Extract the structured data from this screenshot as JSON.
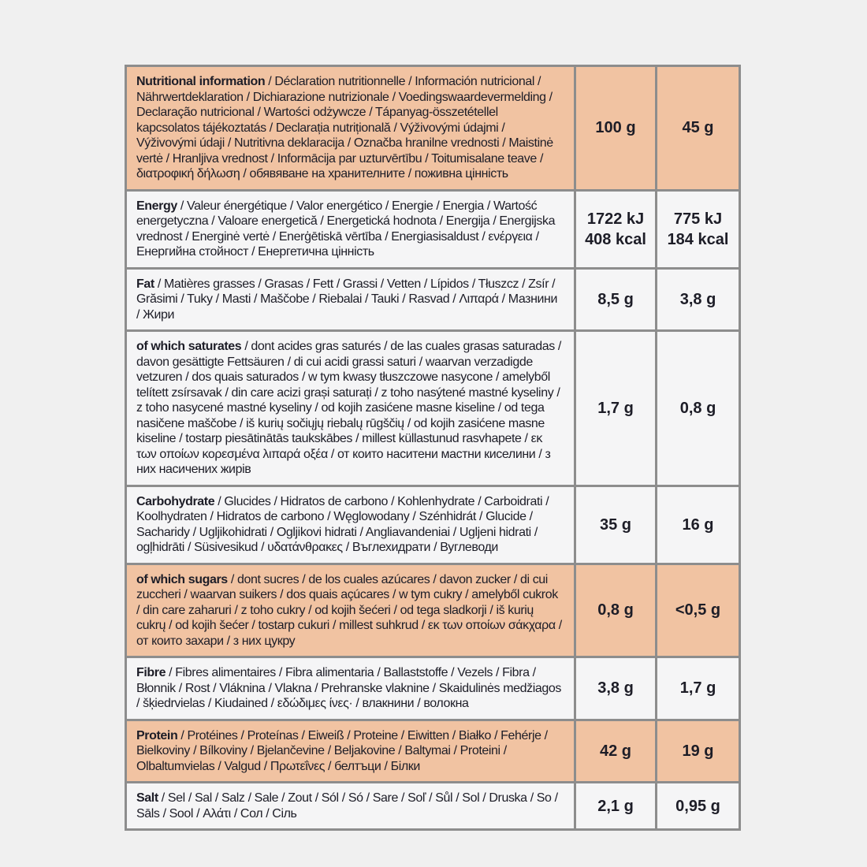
{
  "colors": {
    "page_background": "#f0f0f0",
    "row_background": "#f5f5f6",
    "highlight_background": "#f1c3a2",
    "border": "#8d8d8d",
    "text": "#1d1d27"
  },
  "table": {
    "column_headers": [
      "100 g",
      "45 g"
    ],
    "rows": [
      {
        "term": "Nutritional information",
        "rest": " / Déclaration nutritionnelle / Información nutricional / Nährwertdeklaration / Dichiarazione nutrizionale / Voedingswaardevermelding / Declaração nutricional / Wartości odżywcze / Tápanyag-összetétellel kapcsolatos tájékoztatás / Declarația nutrițională / Výživovými údajmi / Výživovými údaji / Nutritivna deklaracija / Označba hranilne vrednosti / Maistinė vertė / Hranljiva vrednost / Informācija par uzturvērtību / Toitumisalane teave / διατροφική δήλωση / обявяване на хранителните / поживна цінність",
        "v100": "100 g",
        "v45": "45 g",
        "highlight": true,
        "min_height": 150
      },
      {
        "term": "Energy",
        "rest": " / Valeur énergétique / Valor energético / Energie / Energia / Wartość energetyczna / Valoare energetică / Energetická hodnota / Energija / Energijska vrednost / Energinė vertė / Enerģētiskā vērtība / Energiasisaldust / ενέργεια / Енергийна стойност / Енергетична цінність",
        "v100": "1722 kJ\n408 kcal",
        "v45": "775 kJ\n184 kcal",
        "highlight": false,
        "min_height": 99
      },
      {
        "term": "Fat",
        "rest": " / Matières grasses / Grasas / Fett / Grassi / Vetten / Lípidos / Tłuszcz / Zsír / Grăsimi / Tuky / Masti / Maščobe / Riebalai / Tauki / Rasvad / Λιπαρά / Мазнини / Жири",
        "v100": "8,5 g",
        "v45": "3,8 g",
        "highlight": false,
        "min_height": 75
      },
      {
        "term": "of which saturates",
        "rest": " / dont acides gras saturés / de las cuales grasas saturadas / davon gesättigte Fettsäuren / di cui acidi grassi saturi / waarvan verzadigde vetzuren / dos quais saturados / w tym kwasy tłuszczowe nasycone / amelyből telített zsírsavak / din care acizi grași saturați / z toho nasýtené mastné kyseliny / z toho nasycené mastné kyseliny / od kojih zasićene masne kiseline / od tega nasičene maščobe / iš kurių sočiųjų riebalų rūgščių / od kojih zasićene masne kiseline / tostarp piesātinātās taukskābes / millest küllastunud rasvhapete / εκ των οποίων κορεσμένα λιπαρά οξέα / от които наситени мастни киселини / з них насичених жирів",
        "v100": "1,7 g",
        "v45": "0,8 g",
        "highlight": false,
        "min_height": 170
      },
      {
        "term": "Carbohydrate",
        "rest": " / Glucides / Hidratos de carbono / Kohlenhydrate / Carboidrati / Koolhydraten / Hidratos de carbono / Węglowodany / Szénhidrát / Glucide / Sacharidy / Ugljikohidrati / Ogljikovi hidrati / Angliavandeniai / Ugljeni hidrati / ogļhidrāti / Süsivesikud / υδατάνθρακες / Въглехидрати / Вуглеводи",
        "v100": "35 g",
        "v45": "16 g",
        "highlight": false,
        "min_height": 95
      },
      {
        "term": "of which sugars",
        "rest": " / dont sucres / de los cuales azúcares / davon zucker / di cui zuccheri / waarvan suikers / dos quais açúcares / w tym cukry / amelyből cukrok / din care zaharuri / z toho cukry / od kojih šećeri / od tega sladkorji / iš kurių cukrų / od kojih šećer / tostarp cukuri / millest suhkrud / εκ των οποίων σάκχαρα / от които захари / з них цукру",
        "v100": "0,8 g",
        "v45": "<0,5 g",
        "highlight": true,
        "min_height": 109
      },
      {
        "term": "Fibre",
        "rest": " / Fibres alimentaires / Fibra alimentaria / Ballaststoffe / Vezels / Fibra / Błonnik / Rost / Vláknina / Vlakna / Prehranske vlaknine / Skaidulinės medžiagos / šķiedrvielas / Kiudained / εδώδιμες ίνες· / влакнини / волокна",
        "v100": "3,8 g",
        "v45": "1,7 g",
        "highlight": false,
        "min_height": 73
      },
      {
        "term": "Protein",
        "rest": " / Protéines / Proteínas / Eiweiß / Proteine / Eiwitten / Białko / Fehérje / Bielkoviny / Bílkoviny / Bjelančevine / Beljakovine / Baltymai / Proteini / Olbaltumvielas / Valgud / Πρωτεΐνες / белтъци / Білки",
        "v100": "42 g",
        "v45": "19 g",
        "highlight": true,
        "min_height": 79
      },
      {
        "term": "Salt",
        "rest": " / Sel / Sal / Salz / Sale / Zout / Sól / Só / Sare / Soľ / Sůl / Sol / Druska / So / Sāls / Sool / Αλάτι / Сол / Сіль",
        "v100": "2,1 g",
        "v45": "0,95 g",
        "highlight": false,
        "min_height": 54
      }
    ]
  }
}
